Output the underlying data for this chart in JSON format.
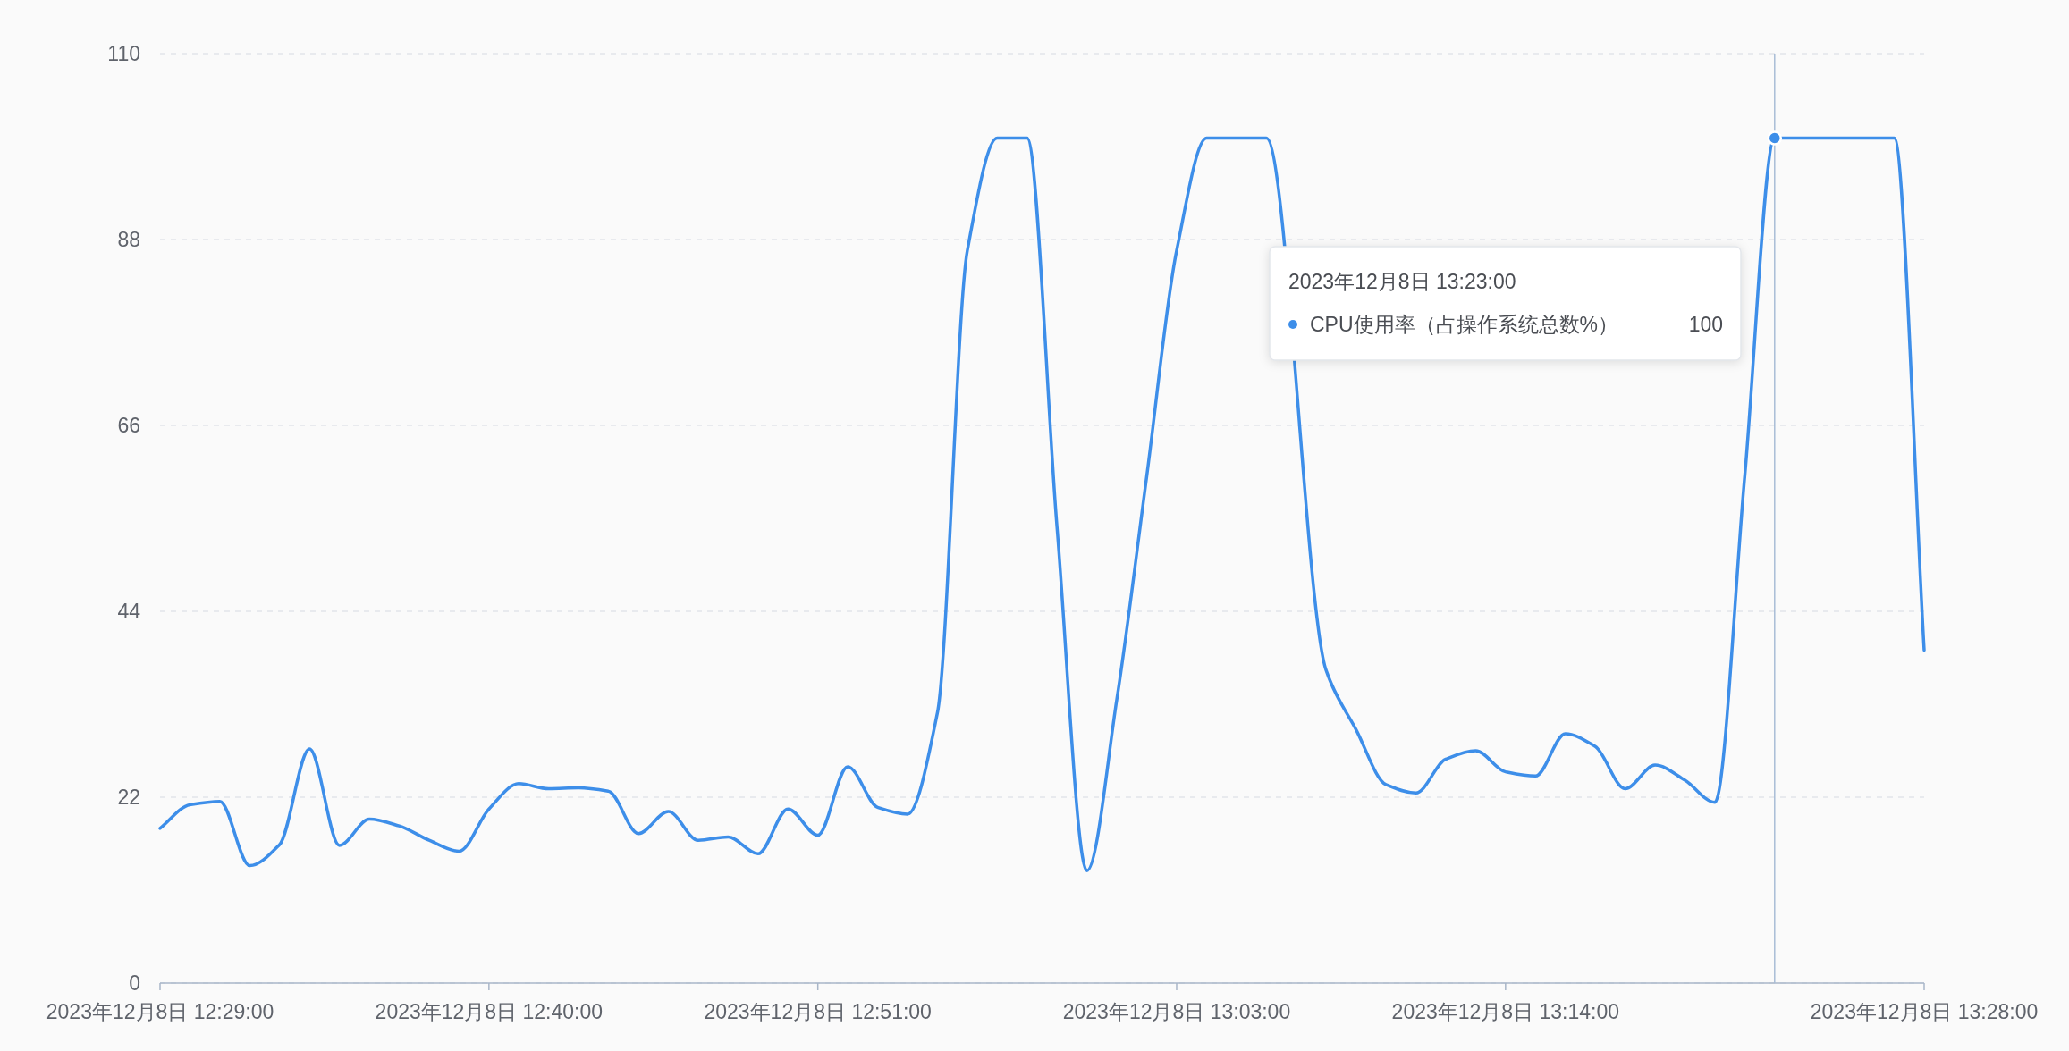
{
  "chart_data": {
    "type": "line",
    "x": [
      "2023-12-08T12:29",
      "2023-12-08T12:30",
      "2023-12-08T12:31",
      "2023-12-08T12:32",
      "2023-12-08T12:33",
      "2023-12-08T12:34",
      "2023-12-08T12:35",
      "2023-12-08T12:36",
      "2023-12-08T12:37",
      "2023-12-08T12:38",
      "2023-12-08T12:39",
      "2023-12-08T12:40",
      "2023-12-08T12:41",
      "2023-12-08T12:42",
      "2023-12-08T12:43",
      "2023-12-08T12:44",
      "2023-12-08T12:45",
      "2023-12-08T12:46",
      "2023-12-08T12:47",
      "2023-12-08T12:48",
      "2023-12-08T12:49",
      "2023-12-08T12:50",
      "2023-12-08T12:51",
      "2023-12-08T12:52",
      "2023-12-08T12:53",
      "2023-12-08T12:54",
      "2023-12-08T12:55",
      "2023-12-08T12:56",
      "2023-12-08T12:57",
      "2023-12-08T12:58",
      "2023-12-08T12:59",
      "2023-12-08T13:00",
      "2023-12-08T13:01",
      "2023-12-08T13:02",
      "2023-12-08T13:03",
      "2023-12-08T13:04",
      "2023-12-08T13:05",
      "2023-12-08T13:06",
      "2023-12-08T13:07",
      "2023-12-08T13:08",
      "2023-12-08T13:09",
      "2023-12-08T13:10",
      "2023-12-08T13:11",
      "2023-12-08T13:12",
      "2023-12-08T13:13",
      "2023-12-08T13:14",
      "2023-12-08T13:15",
      "2023-12-08T13:16",
      "2023-12-08T13:17",
      "2023-12-08T13:18",
      "2023-12-08T13:19",
      "2023-12-08T13:20",
      "2023-12-08T13:21",
      "2023-12-08T13:22",
      "2023-12-08T13:23",
      "2023-12-08T13:24",
      "2023-12-08T13:25",
      "2023-12-08T13:26",
      "2023-12-08T13:27",
      "2023-12-08T13:28"
    ],
    "series": [
      {
        "name": "CPU使用率（占操作系统总数%）",
        "color": "#3d8ee9",
        "values": [
          18.3,
          21.1,
          21.5,
          13.9,
          16.4,
          27.7,
          16.3,
          19.4,
          18.6,
          16.9,
          15.6,
          20.6,
          23.6,
          23.0,
          23.1,
          22.7,
          17.7,
          20.3,
          16.9,
          17.3,
          15.3,
          20.6,
          17.5,
          25.6,
          20.8,
          20.0,
          32.0,
          86.7,
          100,
          100,
          53.9,
          13.3,
          33.6,
          60,
          86.7,
          100,
          100,
          100,
          null,
          37,
          30,
          23.5,
          22.5,
          26.5,
          27.5,
          25.0,
          24.5,
          29.5,
          28,
          23.0,
          25.8,
          24,
          21.4,
          60,
          100,
          100,
          100,
          100,
          100,
          39.4
        ]
      }
    ],
    "xlim": [
      "2023-12-08T12:29",
      "2023-12-08T13:28"
    ],
    "xticks": [
      {
        "value": "2023-12-08T12:29",
        "label": "2023年12月8日 12:29:00"
      },
      {
        "value": "2023-12-08T12:40",
        "label": "2023年12月8日 12:40:00"
      },
      {
        "value": "2023-12-08T12:51",
        "label": "2023年12月8日 12:51:00"
      },
      {
        "value": "2023-12-08T13:03",
        "label": "2023年12月8日 13:03:00"
      },
      {
        "value": "2023-12-08T13:14",
        "label": "2023年12月8日 13:14:00"
      },
      {
        "value": "2023-12-08T13:28",
        "label": "2023年12月8日 13:28:00"
      }
    ],
    "ylim": [
      0,
      110
    ],
    "yticks": [
      0,
      22,
      44,
      66,
      88,
      110
    ],
    "grid": "y",
    "legend": "top right",
    "marker": "none",
    "line_style": "solid",
    "ref_lines": [
      {
        "axis": "x",
        "value": "2023-12-08T13:23",
        "color": "#a9bdd6"
      }
    ],
    "annotations": [
      "2023年12月8日 13:23:00",
      "100"
    ]
  }
}
